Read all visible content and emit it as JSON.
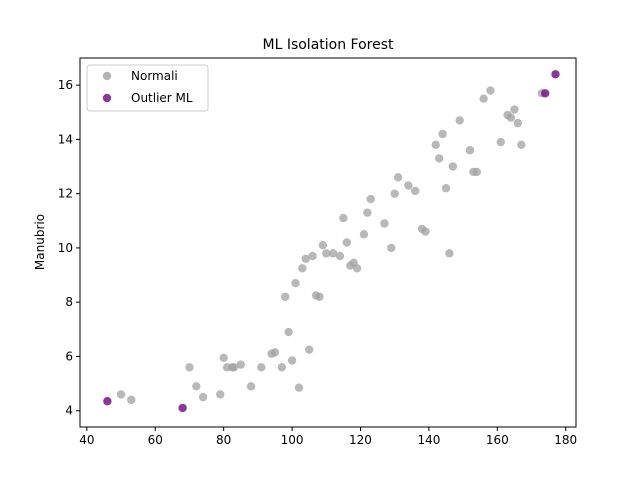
{
  "chart_data": {
    "type": "scatter",
    "title": "ML Isolation Forest",
    "xlabel": "",
    "ylabel": "Manubrio",
    "xlim": [
      38,
      183
    ],
    "ylim": [
      3.4,
      17.0
    ],
    "xticks": [
      40,
      60,
      80,
      100,
      120,
      140,
      160,
      180
    ],
    "yticks": [
      4,
      6,
      8,
      10,
      12,
      14,
      16
    ],
    "grid": false,
    "legend_position": "top-left",
    "series": [
      {
        "name": "Normali",
        "color": "#a0a0a0",
        "points": [
          [
            50,
            4.6
          ],
          [
            53,
            4.4
          ],
          [
            70,
            5.6
          ],
          [
            72,
            4.9
          ],
          [
            74,
            4.5
          ],
          [
            79,
            4.6
          ],
          [
            80,
            5.95
          ],
          [
            81,
            5.6
          ],
          [
            82.5,
            5.6
          ],
          [
            83,
            5.6
          ],
          [
            85,
            5.7
          ],
          [
            88,
            4.9
          ],
          [
            91,
            5.6
          ],
          [
            94,
            6.1
          ],
          [
            95,
            6.15
          ],
          [
            97,
            5.6
          ],
          [
            99,
            6.9
          ],
          [
            100,
            5.85
          ],
          [
            102,
            4.85
          ],
          [
            105,
            6.25
          ],
          [
            98,
            8.2
          ],
          [
            101,
            8.7
          ],
          [
            103,
            9.25
          ],
          [
            104,
            9.6
          ],
          [
            106,
            9.7
          ],
          [
            107,
            8.25
          ],
          [
            108,
            8.2
          ],
          [
            109,
            10.1
          ],
          [
            110,
            9.8
          ],
          [
            112,
            9.8
          ],
          [
            114,
            9.7
          ],
          [
            115,
            11.1
          ],
          [
            116,
            10.2
          ],
          [
            117,
            9.35
          ],
          [
            118,
            9.45
          ],
          [
            119,
            9.25
          ],
          [
            121,
            10.5
          ],
          [
            122,
            11.3
          ],
          [
            123,
            11.8
          ],
          [
            127,
            10.9
          ],
          [
            129,
            10.0
          ],
          [
            130,
            12.0
          ],
          [
            131,
            12.6
          ],
          [
            134,
            12.3
          ],
          [
            136,
            12.1
          ],
          [
            138,
            10.7
          ],
          [
            139,
            10.6
          ],
          [
            142,
            13.8
          ],
          [
            143,
            13.3
          ],
          [
            144,
            14.2
          ],
          [
            145,
            12.2
          ],
          [
            146,
            9.8
          ],
          [
            147,
            13.0
          ],
          [
            149,
            14.7
          ],
          [
            152,
            13.6
          ],
          [
            153,
            12.8
          ],
          [
            154,
            12.8
          ],
          [
            156,
            15.5
          ],
          [
            158,
            15.8
          ],
          [
            161,
            13.9
          ],
          [
            163,
            14.9
          ],
          [
            164,
            14.8
          ],
          [
            165,
            15.1
          ],
          [
            166,
            14.6
          ],
          [
            167,
            13.8
          ],
          [
            173,
            15.7
          ]
        ]
      },
      {
        "name": "Outlier ML",
        "color": "#6a0a7a",
        "points": [
          [
            46,
            4.35
          ],
          [
            68,
            4.1
          ],
          [
            174,
            15.7
          ],
          [
            177,
            16.4
          ]
        ]
      }
    ]
  }
}
